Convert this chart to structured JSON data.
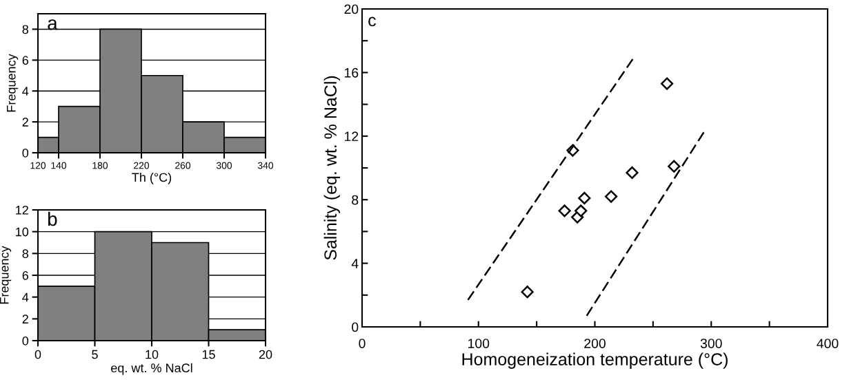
{
  "chart_data": [
    {
      "type": "histogram",
      "bins": [
        120,
        140,
        180,
        220,
        260,
        300,
        340
      ],
      "values": [
        1,
        3,
        8,
        5,
        2,
        1
      ],
      "color": "#808080",
      "xlabel": "Th (°C)",
      "ylabel": "Frequency",
      "annotations": [
        "a"
      ],
      "xlim": [
        120,
        340
      ],
      "xticks": [
        120,
        140,
        180,
        220,
        260,
        300,
        340
      ],
      "ylim": [
        0,
        9
      ],
      "yticks": [
        0,
        2,
        4,
        6,
        8
      ],
      "grid": "y"
    },
    {
      "type": "histogram",
      "bins": [
        0,
        5,
        10,
        15,
        20
      ],
      "values": [
        5,
        10,
        9,
        1
      ],
      "color": "#808080",
      "xlabel": "eq. wt. % NaCl",
      "ylabel": "Frequency",
      "annotations": [
        "b"
      ],
      "xlim": [
        0,
        20
      ],
      "xticks": [
        0,
        5,
        10,
        15,
        20
      ],
      "ylim": [
        0,
        12
      ],
      "yticks": [
        0,
        2,
        4,
        6,
        8,
        10,
        12
      ],
      "grid": "y"
    },
    {
      "type": "scatter",
      "xlabel": "Homogeneization temperature (°C)",
      "ylabel": "Salinity (eq. wt. % NaCl)",
      "annotations": [
        "c"
      ],
      "marker": "diamond",
      "grid": false,
      "xlim": [
        0,
        400
      ],
      "xticks": [
        0,
        {
          "value": 50,
          "label": null
        },
        100,
        {
          "value": 150,
          "label": null
        },
        200,
        {
          "value": 250,
          "label": null
        },
        300,
        {
          "value": 350,
          "label": null
        },
        400
      ],
      "ylim": [
        0,
        20
      ],
      "yticks": [
        0,
        {
          "value": 2,
          "label": null
        },
        4,
        {
          "value": 6,
          "label": null
        },
        8,
        {
          "value": 10,
          "label": null
        },
        12,
        {
          "value": 14,
          "label": null
        },
        16,
        {
          "value": 18,
          "label": null
        },
        20
      ],
      "series": [
        {
          "color": "#000000",
          "x": [
            142,
            174,
            181,
            185,
            188,
            191,
            214,
            232,
            262,
            268
          ],
          "values": [
            2.2,
            7.3,
            11.1,
            6.9,
            7.3,
            8.1,
            8.2,
            9.7,
            15.3,
            10.1
          ]
        },
        {
          "type": "line",
          "line_style": "dashed",
          "marker": "none",
          "color": "#000000",
          "x": [
            91,
            234
          ],
          "values": [
            1.7,
            17.0
          ]
        },
        {
          "type": "line",
          "line_style": "dashed",
          "marker": "none",
          "color": "#000000",
          "x": [
            193,
            295
          ],
          "values": [
            0.7,
            12.4
          ]
        }
      ]
    }
  ]
}
